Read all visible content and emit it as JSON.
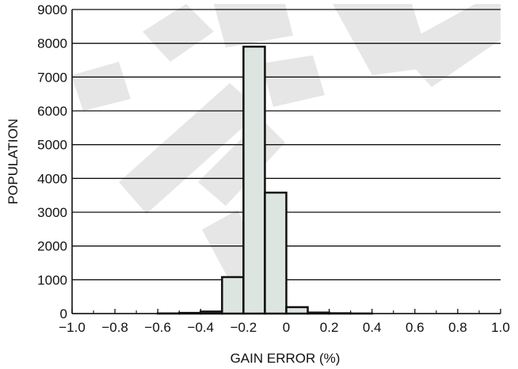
{
  "chart_data": {
    "type": "bar",
    "xlabel": "GAIN ERROR (%)",
    "ylabel": "POPULATION",
    "xlim": [
      -1.0,
      1.0
    ],
    "ylim": [
      0,
      9000
    ],
    "x_ticks": [
      "−1.0",
      "−0.8",
      "−0.6",
      "−0.4",
      "−0.2",
      "0",
      "0.2",
      "0.4",
      "0.6",
      "0.8",
      "1.0"
    ],
    "y_ticks": [
      "9000",
      "8000",
      "7000",
      "6000",
      "5000",
      "4000",
      "3000",
      "2000",
      "1000",
      "0"
    ],
    "bin_width": 0.1,
    "bins": [
      {
        "x0": -0.6,
        "x1": -0.5,
        "value": 5
      },
      {
        "x0": -0.5,
        "x1": -0.4,
        "value": 20
      },
      {
        "x0": -0.4,
        "x1": -0.3,
        "value": 60
      },
      {
        "x0": -0.3,
        "x1": -0.2,
        "value": 1080
      },
      {
        "x0": -0.2,
        "x1": -0.1,
        "value": 7900
      },
      {
        "x0": -0.1,
        "x1": 0.0,
        "value": 3580
      },
      {
        "x0": 0.0,
        "x1": 0.1,
        "value": 190
      },
      {
        "x0": 0.1,
        "x1": 0.2,
        "value": 30
      },
      {
        "x0": 0.2,
        "x1": 0.3,
        "value": 10
      },
      {
        "x0": 0.3,
        "x1": 0.4,
        "value": 3
      }
    ],
    "grid": "horizontal",
    "bar_color": "#dde5e1",
    "bar_edge_color": "#111111"
  }
}
